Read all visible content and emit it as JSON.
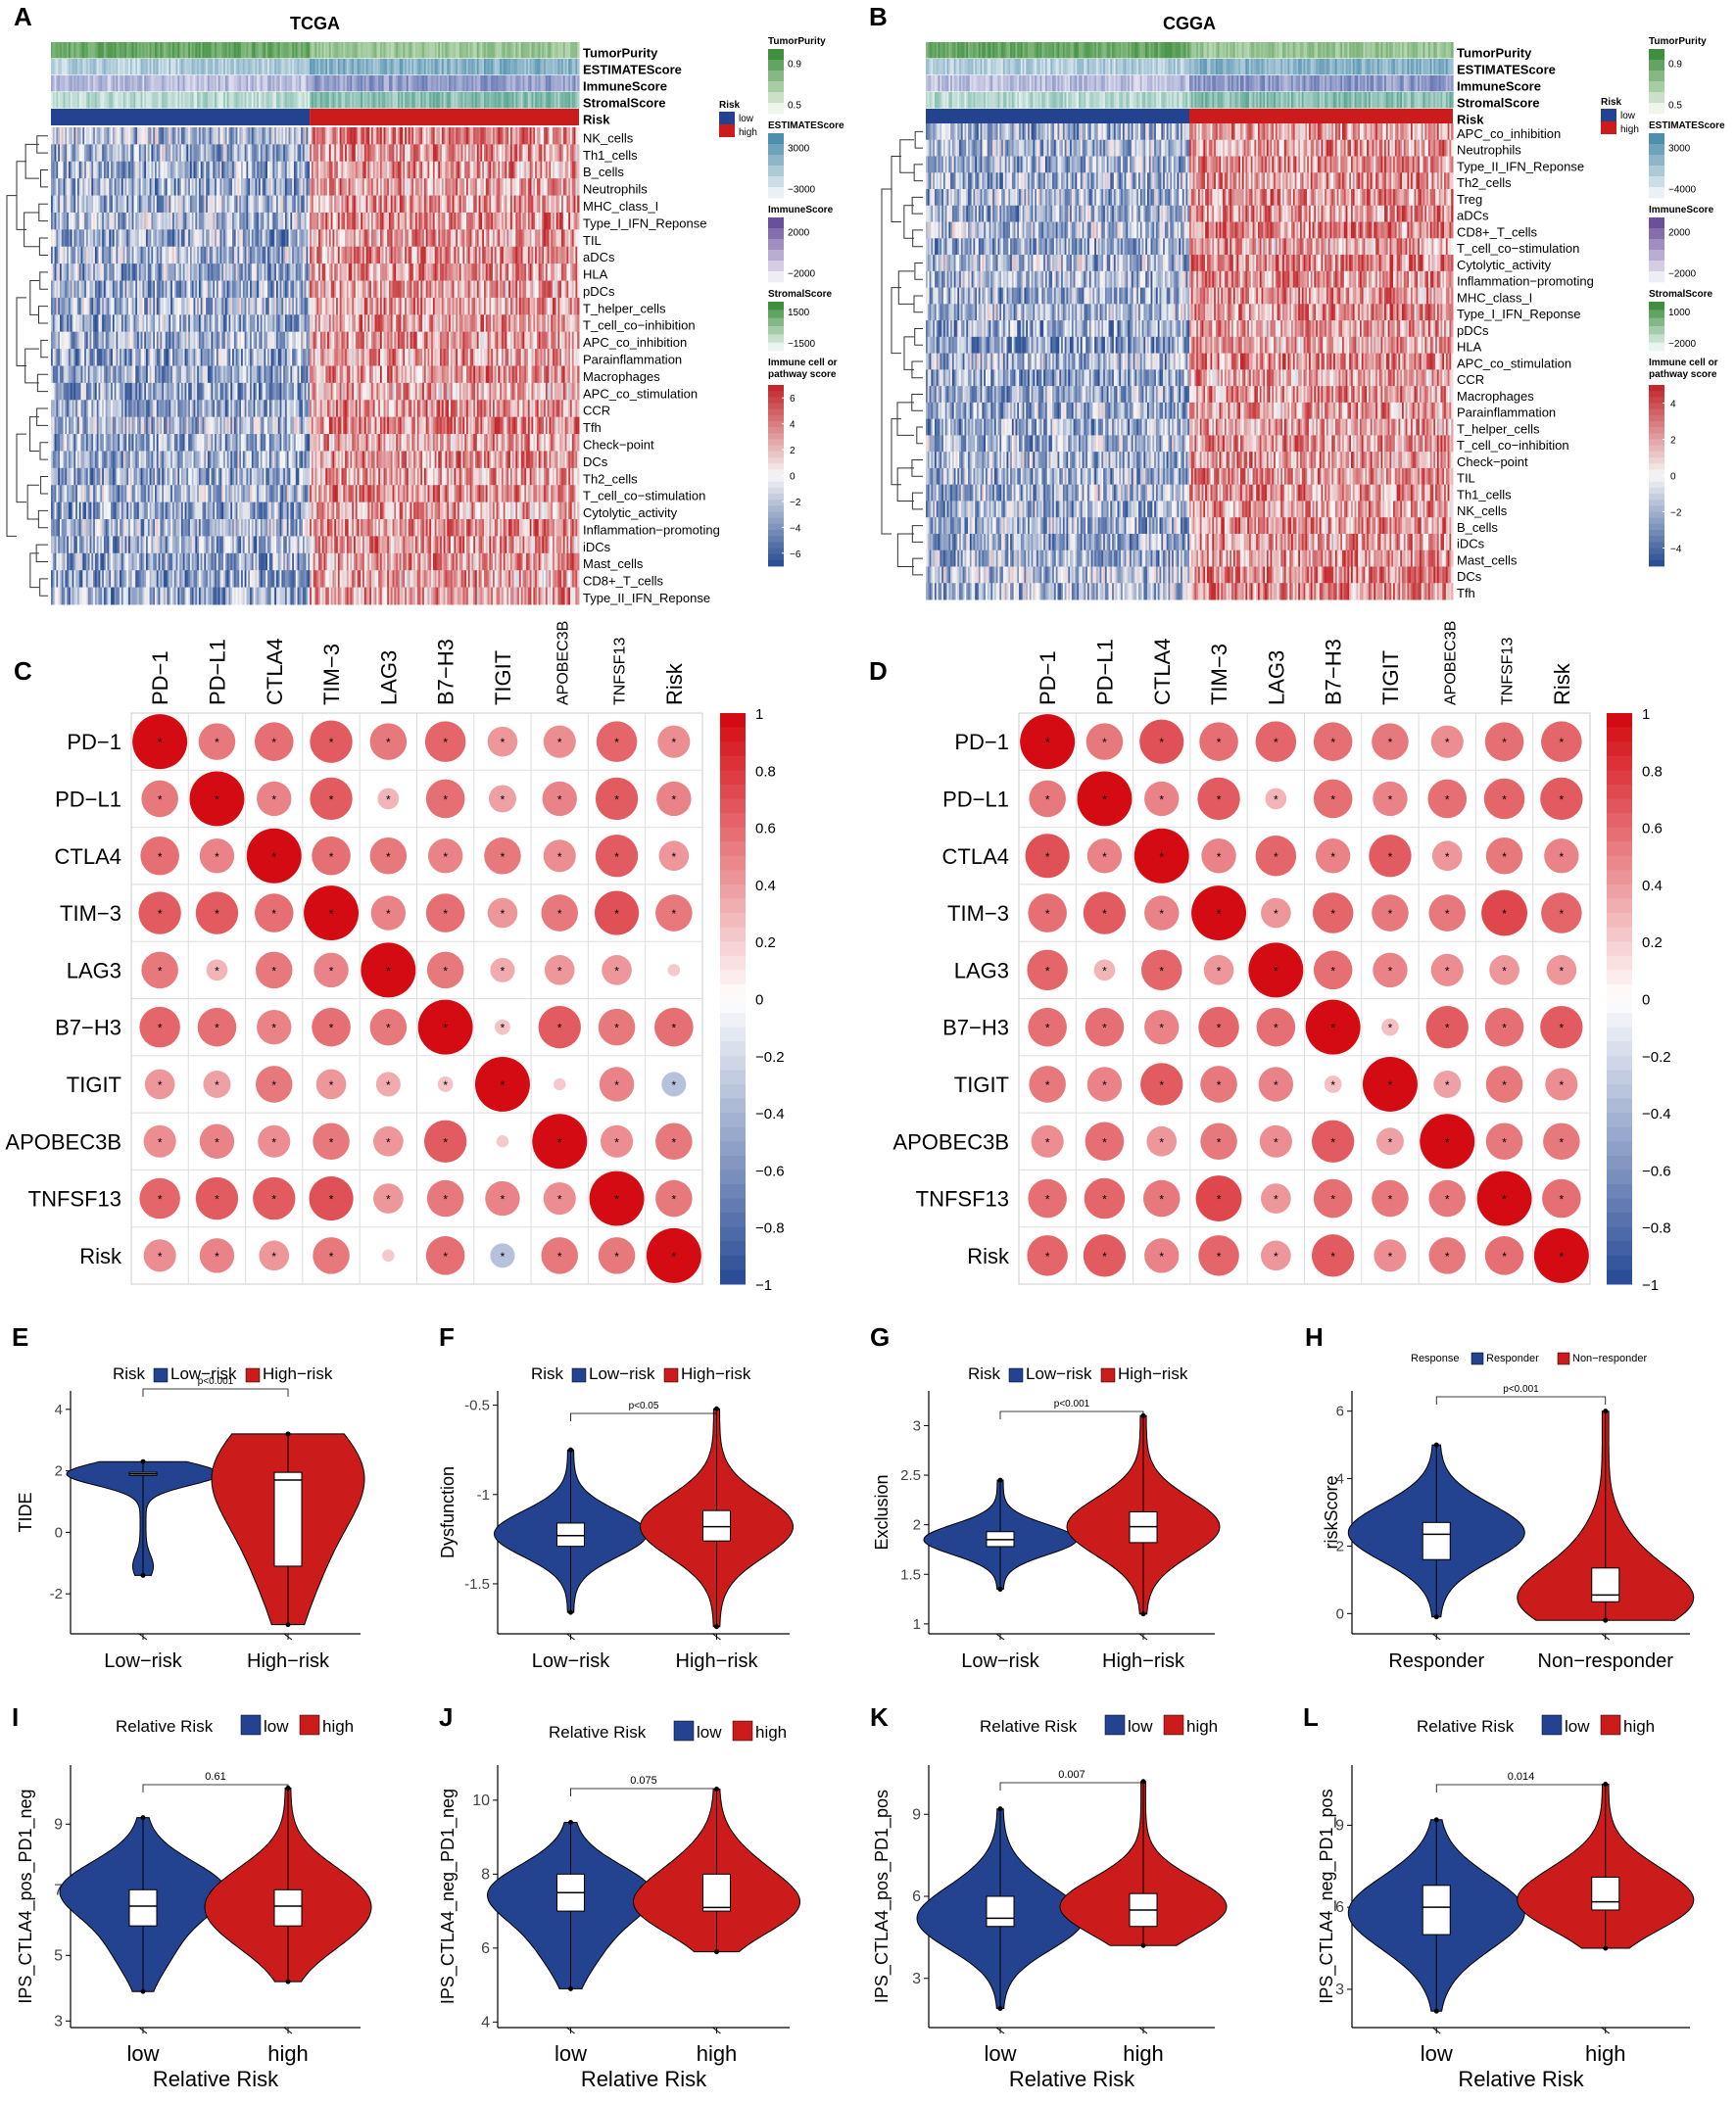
{
  "figure": {
    "panel_letters": [
      "A",
      "B",
      "C",
      "D",
      "E",
      "F",
      "G",
      "H",
      "I",
      "J",
      "K",
      "L"
    ]
  },
  "colors": {
    "low": "#23428f",
    "high": "#cc1b1b",
    "heat_low": "#2b4f94",
    "heat_mid": "#f7f7f7",
    "heat_high": "#c3282c",
    "green": "#3f8f3f",
    "purple": "#6a4f9a",
    "corr_neg": "#2c4e98",
    "corr_pos": "#d40b13"
  },
  "chart_data": [
    {
      "panel": "A",
      "type": "heatmap",
      "title": "TCGA",
      "annotation_rows": [
        "TumorPurity",
        "ESTIMATEScore",
        "ImmuneScore",
        "StromalScore",
        "Risk"
      ],
      "rows": [
        "NK_cells",
        "Th1_cells",
        "B_cells",
        "Neutrophils",
        "MHC_class_I",
        "Type_I_IFN_Reponse",
        "TIL",
        "aDCs",
        "HLA",
        "pDCs",
        "T_helper_cells",
        "T_cell_co−inhibition",
        "APC_co_inhibition",
        "Parainflammation",
        "Macrophages",
        "APC_co_stimulation",
        "CCR",
        "Tfh",
        "Check−point",
        "DCs",
        "Th2_cells",
        "T_cell_co−stimulation",
        "Cytolytic_activity",
        "Inflammation−promoting",
        "iDCs",
        "Mast_cells",
        "CD8+_T_cells",
        "Type_II_IFN_Reponse"
      ],
      "low_risk_fraction": 0.49,
      "legends": [
        {
          "title": "TumorPurity",
          "ticks": [
            "0.9",
            "0.5"
          ],
          "color": "green"
        },
        {
          "title": "Risk",
          "items": [
            "low",
            "high"
          ]
        },
        {
          "title": "ESTIMATEScore",
          "ticks": [
            "3000",
            "−3000"
          ],
          "color": "blue"
        },
        {
          "title": "ImmuneScore",
          "ticks": [
            "2000",
            "−2000"
          ],
          "color": "purple"
        },
        {
          "title": "StromalScore",
          "ticks": [
            "1500",
            "−1500"
          ],
          "color": "green"
        },
        {
          "title": "Immune cell or pathway score",
          "title_lines": [
            "Immune cell or",
            "pathway score"
          ],
          "ticks": [
            "6",
            "4",
            "2",
            "0",
            "−2",
            "−4",
            "−6"
          ],
          "range": [
            -7,
            7
          ]
        }
      ]
    },
    {
      "panel": "B",
      "type": "heatmap",
      "title": "CGGA",
      "annotation_rows": [
        "TumorPurity",
        "ESTIMATEScore",
        "ImmuneScore",
        "StromalScore",
        "Risk"
      ],
      "rows": [
        "APC_co_inhibition",
        "Neutrophils",
        "Type_II_IFN_Reponse",
        "Th2_cells",
        "Treg",
        "aDCs",
        "CD8+_T_cells",
        "T_cell_co−stimulation",
        "Cytolytic_activity",
        "Inflammation−promoting",
        "MHC_class_I",
        "Type_I_IFN_Reponse",
        "pDCs",
        "HLA",
        "APC_co_stimulation",
        "CCR",
        "Macrophages",
        "Parainflammation",
        "T_helper_cells",
        "T_cell_co−inhibition",
        "Check−point",
        "TIL",
        "Th1_cells",
        "NK_cells",
        "B_cells",
        "iDCs",
        "Mast_cells",
        "DCs",
        "Tfh"
      ],
      "low_risk_fraction": 0.5,
      "legends": [
        {
          "title": "TumorPurity",
          "ticks": [
            "0.9",
            "0.5"
          ],
          "color": "green"
        },
        {
          "title": "Risk",
          "items": [
            "low",
            "high"
          ]
        },
        {
          "title": "ESTIMATEScore",
          "ticks": [
            "3000",
            "−4000"
          ],
          "color": "blue"
        },
        {
          "title": "ImmuneScore",
          "ticks": [
            "2000",
            "−2000"
          ],
          "color": "purple"
        },
        {
          "title": "StromalScore",
          "ticks": [
            "1000",
            "−2000"
          ],
          "color": "green"
        },
        {
          "title": "Immune cell or pathway score",
          "title_lines": [
            "Immune cell or",
            "pathway score"
          ],
          "ticks": [
            "4",
            "2",
            "0",
            "−2",
            "−4"
          ],
          "range": [
            -5,
            5
          ]
        }
      ]
    },
    {
      "panel": "C",
      "type": "correlation",
      "labels": [
        "PD−1",
        "PD−L1",
        "CTLA4",
        "TIM−3",
        "LAG3",
        "B7−H3",
        "TIGIT",
        "APOBEC3B",
        "TNFSF13",
        "Risk"
      ],
      "matrix": [
        [
          1,
          0.45,
          0.5,
          0.6,
          0.45,
          0.55,
          0.3,
          0.35,
          0.55,
          0.35
        ],
        [
          0.45,
          1,
          0.4,
          0.6,
          0.15,
          0.5,
          0.25,
          0.4,
          0.6,
          0.4
        ],
        [
          0.5,
          0.4,
          1,
          0.5,
          0.45,
          0.4,
          0.45,
          0.35,
          0.6,
          0.3
        ],
        [
          0.6,
          0.6,
          0.5,
          1,
          0.4,
          0.5,
          0.3,
          0.45,
          0.65,
          0.45
        ],
        [
          0.45,
          0.15,
          0.45,
          0.4,
          1,
          0.45,
          0.2,
          0.3,
          0.3,
          0.05
        ],
        [
          0.55,
          0.5,
          0.4,
          0.5,
          0.45,
          1,
          0.08,
          0.6,
          0.45,
          0.5
        ],
        [
          0.3,
          0.25,
          0.45,
          0.3,
          0.2,
          0.08,
          1,
          0.05,
          0.4,
          -0.2
        ],
        [
          0.35,
          0.4,
          0.35,
          0.45,
          0.3,
          0.6,
          0.05,
          1,
          0.35,
          0.45
        ],
        [
          0.55,
          0.6,
          0.6,
          0.65,
          0.3,
          0.45,
          0.4,
          0.35,
          1,
          0.45
        ],
        [
          0.35,
          0.4,
          0.3,
          0.45,
          0.05,
          0.5,
          -0.2,
          0.45,
          0.45,
          1
        ]
      ],
      "scale_ticks": [
        "1",
        "0.8",
        "0.6",
        "0.4",
        "0.2",
        "0",
        "−0.2",
        "−0.4",
        "−0.6",
        "−0.8",
        "−1"
      ],
      "significance_mark": "*"
    },
    {
      "panel": "D",
      "type": "correlation",
      "labels": [
        "PD−1",
        "PD−L1",
        "CTLA4",
        "TIM−3",
        "LAG3",
        "B7−H3",
        "TIGIT",
        "APOBEC3B",
        "TNFSF13",
        "Risk"
      ],
      "matrix": [
        [
          1,
          0.45,
          0.65,
          0.5,
          0.55,
          0.5,
          0.45,
          0.35,
          0.5,
          0.55
        ],
        [
          0.45,
          1,
          0.4,
          0.6,
          0.15,
          0.5,
          0.4,
          0.5,
          0.55,
          0.6
        ],
        [
          0.65,
          0.4,
          1,
          0.4,
          0.55,
          0.4,
          0.6,
          0.3,
          0.45,
          0.4
        ],
        [
          0.5,
          0.6,
          0.4,
          1,
          0.3,
          0.55,
          0.45,
          0.45,
          0.7,
          0.55
        ],
        [
          0.55,
          0.15,
          0.55,
          0.3,
          1,
          0.5,
          0.4,
          0.35,
          0.3,
          0.3
        ],
        [
          0.5,
          0.5,
          0.4,
          0.55,
          0.5,
          1,
          0.1,
          0.6,
          0.5,
          0.6
        ],
        [
          0.45,
          0.4,
          0.6,
          0.45,
          0.4,
          0.1,
          1,
          0.25,
          0.45,
          0.35
        ],
        [
          0.35,
          0.5,
          0.3,
          0.45,
          0.35,
          0.6,
          0.25,
          1,
          0.45,
          0.45
        ],
        [
          0.5,
          0.55,
          0.45,
          0.7,
          0.3,
          0.5,
          0.45,
          0.45,
          1,
          0.5
        ],
        [
          0.55,
          0.6,
          0.4,
          0.55,
          0.3,
          0.6,
          0.35,
          0.45,
          0.5,
          1
        ]
      ],
      "scale_ticks": [
        "1",
        "0.8",
        "0.6",
        "0.4",
        "0.2",
        "0",
        "−0.2",
        "−0.4",
        "−0.6",
        "−0.8",
        "−1"
      ],
      "significance_mark": "*"
    },
    {
      "panel": "E",
      "type": "violin",
      "ylabel": "TIDE",
      "legend_title": "Risk",
      "categories": [
        "Low−risk",
        "High−risk"
      ],
      "ylim": [
        -3.3,
        4.6
      ],
      "yticks": [
        -2,
        0,
        2,
        4
      ],
      "pvalue": "p<0.001",
      "groups": [
        {
          "q1": 1.85,
          "median": 1.9,
          "q3": 1.95,
          "min": -1.4,
          "max": 2.3,
          "modes": [
            [
              1.9,
              1.0
            ],
            [
              -1.1,
              0.1
            ]
          ]
        },
        {
          "q1": -1.1,
          "median": 1.7,
          "q3": 1.95,
          "min": -3.0,
          "max": 3.2,
          "modes": [
            [
              1.7,
              0.6
            ],
            [
              -1.2,
              0.25
            ],
            [
              2.7,
              0.2
            ]
          ]
        }
      ]
    },
    {
      "panel": "F",
      "type": "violin",
      "ylabel": "Dysfunction",
      "legend_title": "Risk",
      "categories": [
        "Low−risk",
        "High−risk"
      ],
      "ylim": [
        -1.78,
        -0.42
      ],
      "yticks": [
        -1.5,
        -1.0,
        -0.5
      ],
      "pvalue": "p<0.05",
      "groups": [
        {
          "q1": -1.29,
          "median": -1.23,
          "q3": -1.16,
          "min": -1.66,
          "max": -0.75,
          "modes": [
            [
              -1.22,
              1.0
            ]
          ]
        },
        {
          "q1": -1.26,
          "median": -1.18,
          "q3": -1.09,
          "min": -1.74,
          "max": -0.52,
          "modes": [
            [
              -1.18,
              1.0
            ]
          ]
        }
      ]
    },
    {
      "panel": "G",
      "type": "violin",
      "ylabel": "Exclusion",
      "legend_title": "Risk",
      "categories": [
        "Low−risk",
        "High−risk"
      ],
      "ylim": [
        0.9,
        3.35
      ],
      "yticks": [
        1.0,
        1.5,
        2.0,
        2.5,
        3.0
      ],
      "pvalue": "p<0.001",
      "groups": [
        {
          "q1": 1.78,
          "median": 1.85,
          "q3": 1.93,
          "min": 1.35,
          "max": 2.45,
          "modes": [
            [
              1.85,
              1.0
            ]
          ]
        },
        {
          "q1": 1.82,
          "median": 1.98,
          "q3": 2.13,
          "min": 1.1,
          "max": 3.1,
          "modes": [
            [
              1.98,
              1.0
            ]
          ]
        }
      ]
    },
    {
      "panel": "H",
      "type": "violin",
      "ylabel": "riskScore",
      "legend_title": "Response",
      "categories": [
        "Responder",
        "Non−responder"
      ],
      "ylim": [
        -0.6,
        6.6
      ],
      "yticks": [
        0,
        2,
        4,
        6
      ],
      "pvalue": "p<0.001",
      "groups": [
        {
          "q1": 1.6,
          "median": 2.35,
          "q3": 2.7,
          "min": -0.1,
          "max": 5.0,
          "modes": [
            [
              2.4,
              1.0
            ]
          ]
        },
        {
          "q1": 0.35,
          "median": 0.55,
          "q3": 1.35,
          "min": -0.2,
          "max": 6.0,
          "modes": [
            [
              0.4,
              1.0
            ],
            [
              2.0,
              0.2
            ]
          ]
        }
      ]
    },
    {
      "panel": "I",
      "type": "violin",
      "ylabel": "IPS_CTLA4_pos_PD1_neg",
      "legend_title": "Relative Risk",
      "xlabel": "Relative Risk",
      "categories": [
        "low",
        "high"
      ],
      "ylim": [
        2.8,
        10.8
      ],
      "yticks": [
        3,
        5,
        7,
        9
      ],
      "pvalue": "0.61",
      "groups": [
        {
          "q1": 5.9,
          "median": 6.5,
          "q3": 7.0,
          "min": 3.9,
          "max": 9.2,
          "modes": [
            [
              7.0,
              1.0
            ],
            [
              5.2,
              0.3
            ]
          ]
        },
        {
          "q1": 5.9,
          "median": 6.5,
          "q3": 7.0,
          "min": 4.2,
          "max": 10.1,
          "modes": [
            [
              7.0,
              0.8
            ],
            [
              5.8,
              0.7
            ]
          ]
        }
      ]
    },
    {
      "panel": "J",
      "type": "violin",
      "ylabel": "IPS_CTLA4_neg_PD1_neg",
      "legend_title": "Relative Risk",
      "xlabel": "Relative Risk",
      "categories": [
        "low",
        "high"
      ],
      "ylim": [
        3.85,
        10.95
      ],
      "yticks": [
        4,
        6,
        8,
        10
      ],
      "pvalue": "0.075",
      "groups": [
        {
          "q1": 7.0,
          "median": 7.5,
          "q3": 8.0,
          "min": 4.9,
          "max": 9.4,
          "modes": [
            [
              7.5,
              1.0
            ],
            [
              6.0,
              0.3
            ]
          ]
        },
        {
          "q1": 7.0,
          "median": 7.1,
          "q3": 8.0,
          "min": 5.9,
          "max": 10.3,
          "modes": [
            [
              7.1,
              1.0
            ],
            [
              8.2,
              0.35
            ]
          ]
        }
      ]
    },
    {
      "panel": "K",
      "type": "violin",
      "ylabel": "IPS_CTLA4_pos_PD1_pos",
      "legend_title": "Relative Risk",
      "xlabel": "Relative Risk",
      "categories": [
        "low",
        "high"
      ],
      "ylim": [
        1.2,
        10.8
      ],
      "yticks": [
        3,
        6,
        9
      ],
      "pvalue": "0.007",
      "groups": [
        {
          "q1": 4.9,
          "median": 5.2,
          "q3": 6.0,
          "min": 1.9,
          "max": 9.2,
          "modes": [
            [
              5.0,
              1.0
            ],
            [
              6.2,
              0.3
            ]
          ]
        },
        {
          "q1": 4.9,
          "median": 5.5,
          "q3": 6.1,
          "min": 4.2,
          "max": 10.2,
          "modes": [
            [
              5.3,
              0.8
            ],
            [
              6.0,
              0.7
            ]
          ]
        }
      ]
    },
    {
      "panel": "L",
      "type": "violin",
      "ylabel": "IPS_CTLA4_neg_PD1_pos",
      "legend_title": "Relative Risk",
      "xlabel": "Relative Risk",
      "categories": [
        "low",
        "high"
      ],
      "ylim": [
        1.6,
        11.2
      ],
      "yticks": [
        3,
        6,
        9
      ],
      "pvalue": "0.014",
      "groups": [
        {
          "q1": 5.0,
          "median": 6.0,
          "q3": 6.8,
          "min": 2.2,
          "max": 9.2,
          "modes": [
            [
              6.0,
              1.0
            ],
            [
              5.0,
              0.3
            ]
          ]
        },
        {
          "q1": 5.9,
          "median": 6.2,
          "q3": 7.1,
          "min": 4.5,
          "max": 10.5,
          "modes": [
            [
              6.0,
              0.9
            ],
            [
              7.2,
              0.4
            ]
          ]
        }
      ]
    }
  ]
}
